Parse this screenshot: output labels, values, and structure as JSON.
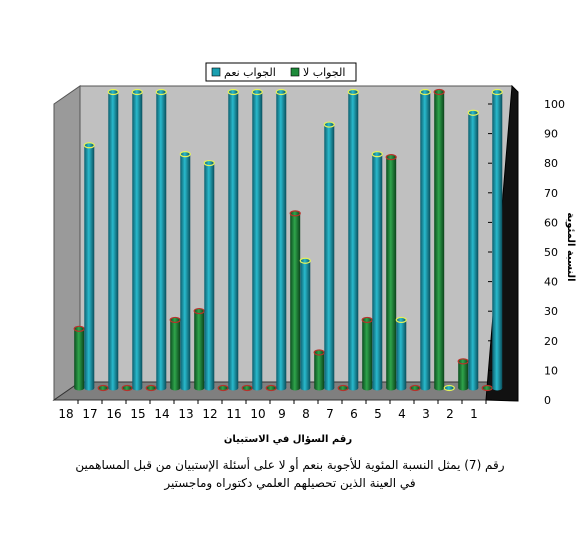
{
  "chart_data": {
    "type": "bar",
    "categories": [
      "1",
      "2",
      "3",
      "4",
      "5",
      "6",
      "7",
      "8",
      "9",
      "10",
      "11",
      "12",
      "13",
      "14",
      "15",
      "16",
      "17",
      "18"
    ],
    "series": [
      {
        "name": "الجواب نعم",
        "color": "#1a9fb0",
        "values": [
          100,
          93,
          0,
          100,
          23,
          79,
          100,
          89,
          43,
          100,
          100,
          100,
          76,
          79,
          100,
          100,
          100,
          82
        ]
      },
      {
        "name": "الجواب لا",
        "color": "#1d8a3a",
        "values": [
          0,
          9,
          100,
          0,
          78,
          23,
          0,
          12,
          59,
          0,
          0,
          0,
          26,
          23,
          0,
          0,
          0,
          20
        ]
      }
    ],
    "ylabel": "النسبة المئوية",
    "xlabel": "رقم السؤال في الاستبيان",
    "ylim": [
      0,
      100
    ],
    "yticks": [
      0,
      10,
      20,
      30,
      40,
      50,
      60,
      70,
      80,
      90,
      100
    ],
    "legend_position": "top-center",
    "grid": false
  },
  "caption": {
    "line1": "رقم (7) يمثل النسبة المئوية للأجوبة بنعم أو لا على أسئلة الإستبيان من قبل المساهمين",
    "line2": "في العينة الذين تحصيلهم العلمي دكتوراه وماجستير"
  }
}
